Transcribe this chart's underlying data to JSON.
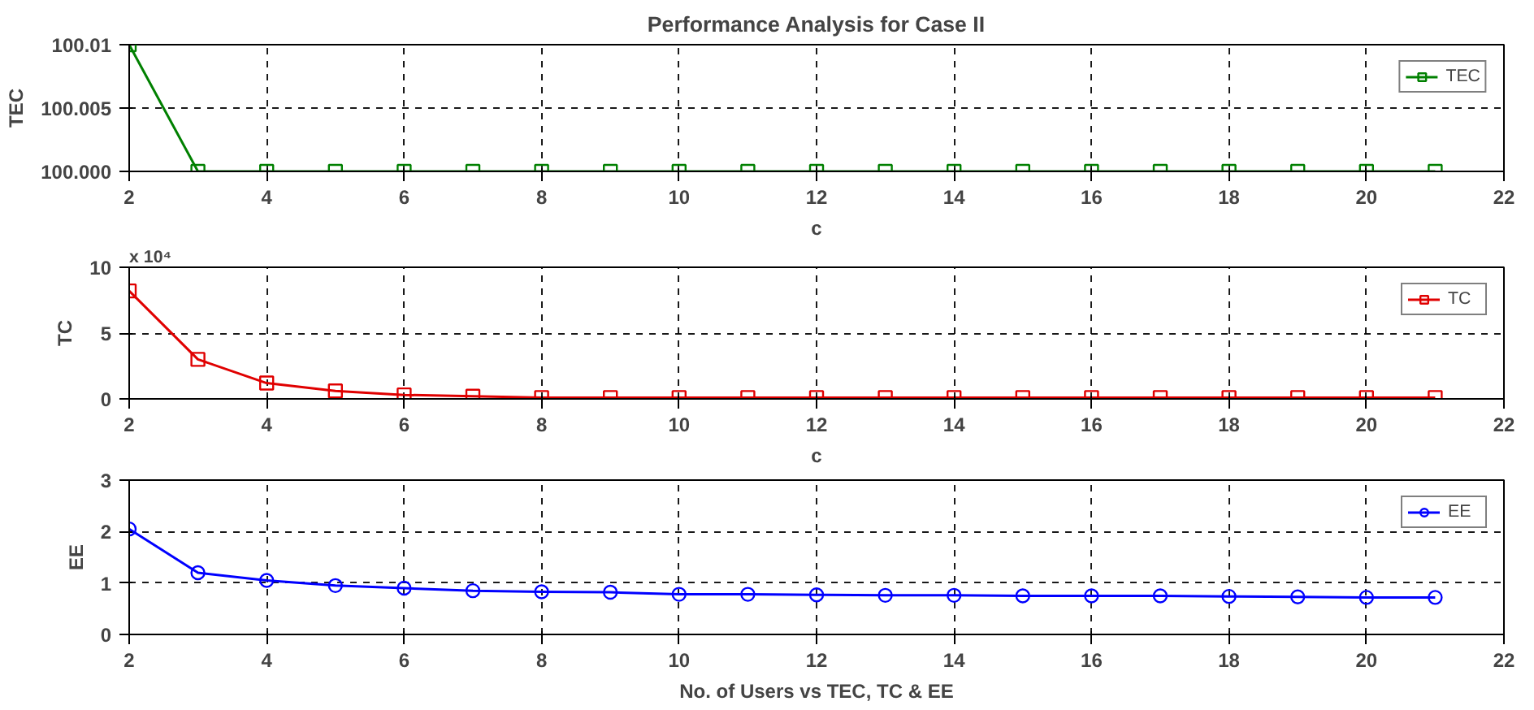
{
  "chart_data": [
    {
      "type": "line",
      "title": "Performance Analysis for Case II",
      "xlabel": "c",
      "ylabel": "TEC",
      "x": [
        2,
        3,
        4,
        5,
        6,
        7,
        8,
        9,
        10,
        11,
        12,
        13,
        14,
        15,
        16,
        17,
        18,
        19,
        20,
        21
      ],
      "xlim": [
        2,
        22
      ],
      "xticks": [
        2,
        4,
        6,
        8,
        10,
        12,
        14,
        16,
        18,
        20,
        22
      ],
      "ylim": [
        100,
        100.01
      ],
      "yticks": [
        {
          "value": 100,
          "label": "100.000"
        },
        100.005,
        100.01
      ],
      "grid": true,
      "legend": "top right",
      "marker": "square",
      "line_style": "solid",
      "series": [
        {
          "name": "TEC",
          "color": "#008000",
          "values": [
            100.01,
            100,
            100,
            100,
            100,
            100,
            100,
            100,
            100,
            100,
            100,
            100,
            100,
            100,
            100,
            100,
            100,
            100,
            100,
            100
          ]
        }
      ]
    },
    {
      "type": "line",
      "xlabel": "c",
      "ylabel": "TC",
      "annotations": [
        "x 10⁴"
      ],
      "x": [
        2,
        3,
        4,
        5,
        6,
        7,
        8,
        9,
        10,
        11,
        12,
        13,
        14,
        15,
        16,
        17,
        18,
        19,
        20,
        21
      ],
      "xlim": [
        2,
        22
      ],
      "xticks": [
        2,
        4,
        6,
        8,
        10,
        12,
        14,
        16,
        18,
        20,
        22
      ],
      "ylim": [
        0,
        10
      ],
      "yticks": [
        0,
        5,
        10
      ],
      "grid": true,
      "legend": "top right",
      "marker": "square",
      "line_style": "solid",
      "series": [
        {
          "name": "TC",
          "color": "#e00000",
          "values": [
            8.2,
            3.0,
            1.2,
            0.6,
            0.3,
            0.2,
            0.1,
            0.1,
            0.1,
            0.1,
            0.1,
            0.1,
            0.1,
            0.1,
            0.1,
            0.1,
            0.1,
            0.1,
            0.1,
            0.1
          ]
        }
      ]
    },
    {
      "type": "line",
      "xlabel": "No. of Users vs TEC, TC & EE",
      "ylabel": "EE",
      "x": [
        2,
        3,
        4,
        5,
        6,
        7,
        8,
        9,
        10,
        11,
        12,
        13,
        14,
        15,
        16,
        17,
        18,
        19,
        20,
        21
      ],
      "xlim": [
        2,
        22
      ],
      "xticks": [
        2,
        4,
        6,
        8,
        10,
        12,
        14,
        16,
        18,
        20,
        22
      ],
      "ylim": [
        0,
        3
      ],
      "yticks": [
        0,
        1,
        2,
        3
      ],
      "grid": true,
      "legend": "top right",
      "marker": "circle",
      "line_style": "solid",
      "series": [
        {
          "name": "EE",
          "color": "#0000ff",
          "values": [
            2.05,
            1.2,
            1.05,
            0.95,
            0.9,
            0.85,
            0.83,
            0.82,
            0.78,
            0.78,
            0.77,
            0.76,
            0.76,
            0.75,
            0.75,
            0.75,
            0.74,
            0.73,
            0.72,
            0.72
          ]
        }
      ]
    }
  ]
}
